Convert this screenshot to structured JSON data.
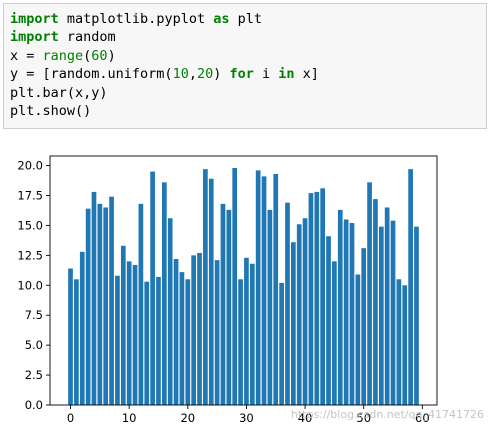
{
  "code_cell": {
    "lines": [
      [
        {
          "t": "import",
          "c": "kw"
        },
        {
          "t": " matplotlib.pyplot ",
          "c": ""
        },
        {
          "t": "as",
          "c": "kw"
        },
        {
          "t": " plt",
          "c": ""
        }
      ],
      [
        {
          "t": "import",
          "c": "kw"
        },
        {
          "t": " random",
          "c": ""
        }
      ],
      [
        {
          "t": "x = ",
          "c": ""
        },
        {
          "t": "range",
          "c": "bi"
        },
        {
          "t": "(",
          "c": ""
        },
        {
          "t": "60",
          "c": "num"
        },
        {
          "t": ")",
          "c": ""
        }
      ],
      [
        {
          "t": "y = [random.uniform(",
          "c": ""
        },
        {
          "t": "10",
          "c": "num"
        },
        {
          "t": ",",
          "c": ""
        },
        {
          "t": "20",
          "c": "num"
        },
        {
          "t": ") ",
          "c": ""
        },
        {
          "t": "for",
          "c": "kw"
        },
        {
          "t": " i ",
          "c": ""
        },
        {
          "t": "in",
          "c": "kw"
        },
        {
          "t": " x]",
          "c": ""
        }
      ],
      [
        {
          "t": "plt.bar(x,y)",
          "c": ""
        }
      ],
      [
        {
          "t": "plt.show()",
          "c": ""
        }
      ]
    ]
  },
  "chart_data": {
    "type": "bar",
    "x": [
      0,
      1,
      2,
      3,
      4,
      5,
      6,
      7,
      8,
      9,
      10,
      11,
      12,
      13,
      14,
      15,
      16,
      17,
      18,
      19,
      20,
      21,
      22,
      23,
      24,
      25,
      26,
      27,
      28,
      29,
      30,
      31,
      32,
      33,
      34,
      35,
      36,
      37,
      38,
      39,
      40,
      41,
      42,
      43,
      44,
      45,
      46,
      47,
      48,
      49,
      50,
      51,
      52,
      53,
      54,
      55,
      56,
      57,
      58,
      59
    ],
    "values": [
      11.4,
      10.5,
      12.8,
      16.4,
      17.8,
      16.8,
      16.5,
      17.4,
      10.8,
      13.3,
      12.0,
      11.7,
      16.8,
      10.3,
      19.5,
      10.7,
      18.6,
      15.6,
      12.2,
      11.1,
      10.5,
      12.5,
      12.7,
      19.7,
      18.9,
      12.1,
      16.8,
      16.3,
      19.8,
      10.5,
      12.3,
      11.8,
      19.6,
      19.1,
      16.3,
      19.3,
      10.2,
      16.9,
      13.6,
      15.1,
      15.6,
      17.7,
      17.8,
      18.1,
      14.1,
      12.0,
      16.3,
      15.5,
      15.2,
      10.9,
      13.1,
      18.6,
      17.2,
      14.9,
      16.5,
      15.4,
      10.5,
      10.0,
      19.7,
      14.9
    ],
    "xticks": [
      0,
      10,
      20,
      30,
      40,
      50,
      60
    ],
    "yticks": [
      0.0,
      2.5,
      5.0,
      7.5,
      10.0,
      12.5,
      15.0,
      17.5,
      20.0
    ],
    "xlim": [
      -3.5,
      62.5
    ],
    "ylim": [
      0,
      20.8
    ],
    "bar_color": "#1f77b4",
    "title": "",
    "xlabel": "",
    "ylabel": "",
    "grid": false
  },
  "watermark": "https://blog.csdn.net/qq_41741726"
}
